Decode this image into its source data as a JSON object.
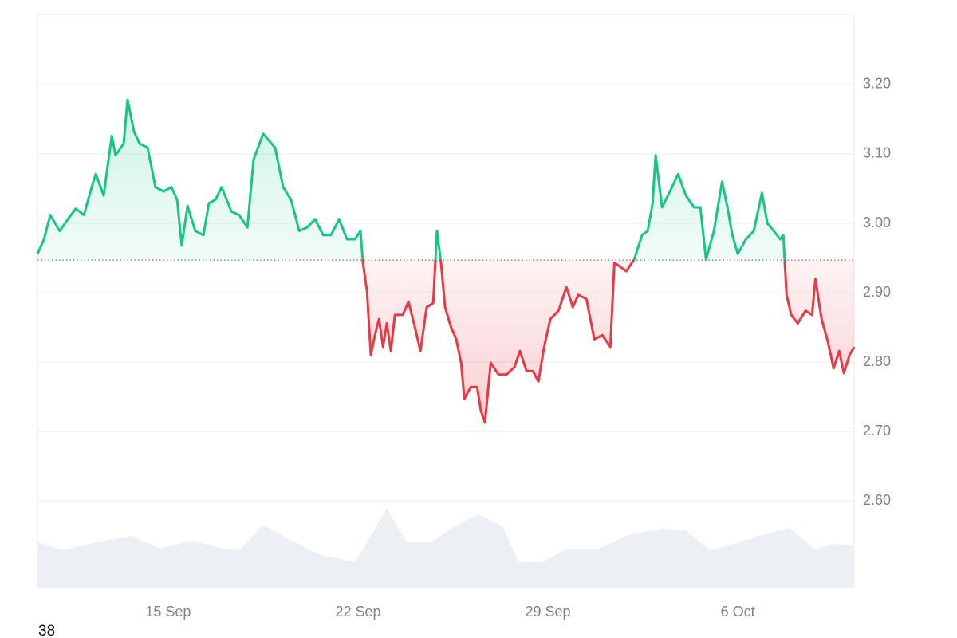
{
  "chart_data": {
    "type": "baseline-line",
    "footer_text": "38",
    "baseline": 2.947,
    "up_color": "#16c784",
    "down_color": "#ea3943",
    "grid": true,
    "xlim": [
      10.18,
      40.29
    ],
    "xticks": [
      {
        "value": 15,
        "label": "15 Sep"
      },
      {
        "value": 22,
        "label": "22 Sep"
      },
      {
        "value": 29,
        "label": "29 Sep"
      },
      {
        "value": 36,
        "label": "6 Oct"
      }
    ],
    "ylim": [
      2.475,
      3.301
    ],
    "yticks": [
      {
        "value": 2.6,
        "label": "2.60"
      },
      {
        "value": 2.7,
        "label": "2.70"
      },
      {
        "value": 2.8,
        "label": "2.80"
      },
      {
        "value": 2.9,
        "label": "2.90"
      },
      {
        "value": 3.0,
        "label": "3.00"
      },
      {
        "value": 3.1,
        "label": "3.10"
      },
      {
        "value": 3.2,
        "label": "3.20"
      }
    ],
    "x": [
      10.18,
      10.42,
      10.65,
      11.0,
      11.3,
      11.59,
      11.89,
      12.18,
      12.33,
      12.62,
      12.92,
      13.06,
      13.36,
      13.5,
      13.74,
      13.94,
      14.24,
      14.53,
      14.83,
      15.12,
      15.33,
      15.5,
      15.71,
      16.0,
      16.3,
      16.5,
      16.74,
      16.97,
      17.33,
      17.62,
      17.92,
      18.15,
      18.5,
      18.94,
      19.24,
      19.53,
      19.83,
      20.12,
      20.42,
      20.71,
      21.0,
      21.3,
      21.59,
      21.89,
      22.09,
      22.18,
      22.33,
      22.47,
      22.62,
      22.77,
      22.92,
      23.06,
      23.21,
      23.36,
      23.65,
      23.86,
      24.09,
      24.3,
      24.53,
      24.77,
      24.91,
      25.06,
      25.21,
      25.42,
      25.62,
      25.8,
      25.92,
      26.15,
      26.39,
      26.53,
      26.68,
      26.89,
      27.18,
      27.47,
      27.77,
      27.97,
      28.21,
      28.45,
      28.65,
      28.86,
      29.09,
      29.39,
      29.68,
      29.92,
      30.12,
      30.42,
      30.71,
      31.0,
      31.3,
      31.45,
      31.68,
      31.89,
      32.18,
      32.47,
      32.68,
      32.86,
      32.97,
      33.21,
      33.5,
      33.8,
      34.09,
      34.39,
      34.62,
      34.83,
      35.12,
      35.42,
      35.62,
      35.8,
      36.0,
      36.3,
      36.59,
      36.89,
      37.09,
      37.33,
      37.56,
      37.68,
      37.8,
      37.97,
      38.21,
      38.5,
      38.74,
      38.86,
      39.09,
      39.33,
      39.53,
      39.74,
      39.91,
      40.12,
      40.29
    ],
    "values": [
      2.956,
      2.977,
      3.012,
      2.989,
      3.006,
      3.021,
      3.012,
      3.052,
      3.071,
      3.04,
      3.126,
      3.098,
      3.115,
      3.178,
      3.132,
      3.115,
      3.109,
      3.052,
      3.046,
      3.052,
      3.034,
      2.968,
      3.025,
      2.989,
      2.983,
      3.029,
      3.034,
      3.052,
      3.017,
      3.012,
      2.994,
      3.092,
      3.129,
      3.109,
      3.052,
      3.034,
      2.989,
      2.994,
      3.006,
      2.983,
      2.983,
      3.006,
      2.977,
      2.977,
      2.989,
      2.943,
      2.902,
      2.81,
      2.839,
      2.862,
      2.822,
      2.856,
      2.816,
      2.868,
      2.868,
      2.887,
      2.851,
      2.816,
      2.879,
      2.885,
      2.989,
      2.943,
      2.879,
      2.851,
      2.833,
      2.799,
      2.747,
      2.764,
      2.764,
      2.73,
      2.713,
      2.799,
      2.782,
      2.782,
      2.793,
      2.816,
      2.787,
      2.787,
      2.772,
      2.822,
      2.862,
      2.874,
      2.908,
      2.879,
      2.897,
      2.891,
      2.833,
      2.839,
      2.822,
      2.943,
      2.937,
      2.931,
      2.948,
      2.983,
      2.989,
      3.029,
      3.098,
      3.023,
      3.046,
      3.071,
      3.04,
      3.023,
      3.023,
      2.948,
      2.989,
      3.06,
      3.023,
      2.983,
      2.956,
      2.977,
      2.989,
      3.044,
      3.0,
      2.989,
      2.977,
      2.983,
      2.897,
      2.868,
      2.856,
      2.874,
      2.868,
      2.92,
      2.862,
      2.828,
      2.791,
      2.816,
      2.784,
      2.81,
      2.822
    ],
    "volume": {
      "color": "#eceff3",
      "ylim": [
        0,
        100
      ],
      "x": [
        10.18,
        11.15,
        12.33,
        13.65,
        14.68,
        15.86,
        17.03,
        17.62,
        18.5,
        19.39,
        20.56,
        21.89,
        22.33,
        23.06,
        23.8,
        24.68,
        25.56,
        26.44,
        27.33,
        27.92,
        28.8,
        29.68,
        30.86,
        32.03,
        33.21,
        34.09,
        34.97,
        35.86,
        36.74,
        37.92,
        38.8,
        39.68,
        40.29
      ],
      "values": [
        57,
        47,
        57,
        65,
        49,
        59,
        49,
        47,
        79,
        62,
        42,
        32,
        57,
        99,
        57,
        57,
        77,
        92,
        77,
        32,
        32,
        49,
        49,
        67,
        74,
        72,
        47,
        55,
        65,
        75,
        49,
        55,
        52
      ]
    }
  }
}
